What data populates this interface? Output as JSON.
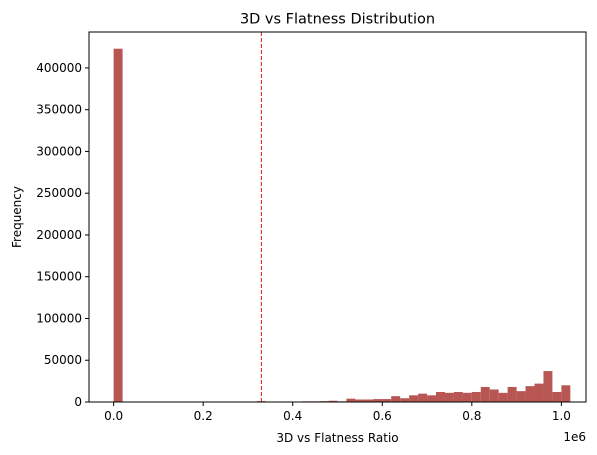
{
  "chart_data": {
    "type": "bar",
    "subtype": "histogram",
    "title": "3D vs Flatness Distribution",
    "xlabel": "3D vs Flatness Ratio",
    "ylabel": "Frequency",
    "x_offset_label": "1e6",
    "xlim": [
      -55000,
      1055000
    ],
    "ylim": [
      0,
      443000
    ],
    "x_ticks": [
      0,
      200000,
      400000,
      600000,
      800000,
      1000000
    ],
    "x_tick_labels": [
      "0.0",
      "0.2",
      "0.4",
      "0.6",
      "0.8",
      "1.0"
    ],
    "y_ticks": [
      0,
      50000,
      100000,
      150000,
      200000,
      250000,
      300000,
      350000,
      400000
    ],
    "y_tick_labels": [
      "0",
      "50000",
      "100000",
      "150000",
      "200000",
      "250000",
      "300000",
      "350000",
      "400000"
    ],
    "bin_start": 0,
    "bin_width": 20000,
    "values": [
      423000,
      0,
      0,
      0,
      0,
      0,
      0,
      0,
      0,
      0,
      0,
      0,
      500,
      0,
      0,
      0,
      1000,
      0,
      0,
      0,
      500,
      800,
      800,
      1000,
      1500,
      800,
      4000,
      3000,
      3000,
      3500,
      3500,
      7000,
      4500,
      8000,
      10000,
      8000,
      12000,
      11000,
      12000,
      11000,
      12000,
      18000,
      15000,
      11000,
      18000,
      13000,
      19000,
      22000,
      37000,
      12000,
      20000
    ],
    "bar_color": "#b85653",
    "threshold_line": {
      "x": 330000,
      "color": "#e31a1c",
      "style": "dashed"
    },
    "grid": false,
    "legend": "none"
  }
}
